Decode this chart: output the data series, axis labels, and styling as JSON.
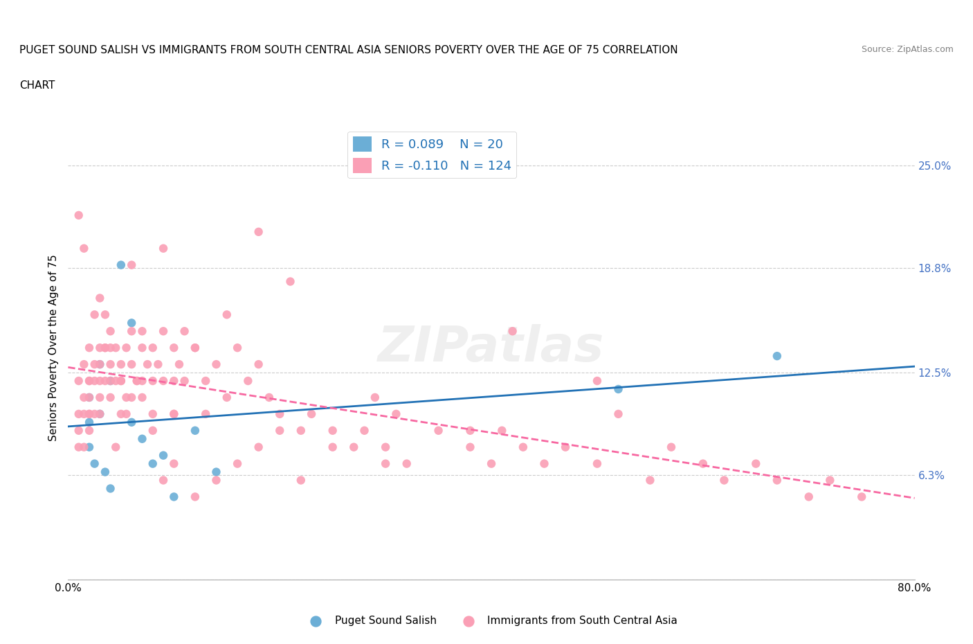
{
  "title_line1": "PUGET SOUND SALISH VS IMMIGRANTS FROM SOUTH CENTRAL ASIA SENIORS POVERTY OVER THE AGE OF 75 CORRELATION",
  "title_line2": "CHART",
  "source_text": "Source: ZipAtlas.com",
  "xlabel": "",
  "ylabel": "Seniors Poverty Over the Age of 75",
  "xlim": [
    0.0,
    0.8
  ],
  "ylim": [
    0.0,
    0.28
  ],
  "yticks": [
    0.0,
    0.063,
    0.125,
    0.188,
    0.25
  ],
  "ytick_labels": [
    "",
    "6.3%",
    "12.5%",
    "18.8%",
    "25.0%"
  ],
  "xticks": [
    0.0,
    0.1,
    0.2,
    0.3,
    0.4,
    0.5,
    0.6,
    0.7,
    0.8
  ],
  "xtick_labels": [
    "0.0%",
    "",
    "",
    "",
    "",
    "",
    "",
    "",
    "80.0%"
  ],
  "color_blue": "#6baed6",
  "color_pink": "#fa9fb5",
  "color_blue_line": "#2171b5",
  "color_pink_line": "#f768a1",
  "legend_r1": "R = 0.089",
  "legend_n1": "N = 20",
  "legend_r2": "R = -0.110",
  "legend_n2": "N = 124",
  "watermark": "ZIPatlas",
  "series1_name": "Puget Sound Salish",
  "series2_name": "Immigrants from South Central Asia",
  "blue_x": [
    0.02,
    0.02,
    0.02,
    0.025,
    0.03,
    0.03,
    0.035,
    0.04,
    0.04,
    0.05,
    0.06,
    0.06,
    0.07,
    0.08,
    0.09,
    0.1,
    0.12,
    0.14,
    0.52,
    0.67
  ],
  "blue_y": [
    0.08,
    0.095,
    0.11,
    0.07,
    0.1,
    0.13,
    0.065,
    0.055,
    0.12,
    0.19,
    0.155,
    0.095,
    0.085,
    0.07,
    0.075,
    0.05,
    0.09,
    0.065,
    0.115,
    0.135
  ],
  "pink_x": [
    0.01,
    0.01,
    0.01,
    0.015,
    0.015,
    0.015,
    0.015,
    0.02,
    0.02,
    0.02,
    0.02,
    0.02,
    0.025,
    0.025,
    0.025,
    0.03,
    0.03,
    0.03,
    0.03,
    0.03,
    0.035,
    0.035,
    0.035,
    0.04,
    0.04,
    0.04,
    0.04,
    0.045,
    0.045,
    0.05,
    0.05,
    0.05,
    0.055,
    0.055,
    0.06,
    0.06,
    0.06,
    0.065,
    0.07,
    0.07,
    0.075,
    0.08,
    0.08,
    0.085,
    0.09,
    0.09,
    0.1,
    0.1,
    0.1,
    0.105,
    0.11,
    0.11,
    0.12,
    0.13,
    0.13,
    0.14,
    0.15,
    0.16,
    0.17,
    0.18,
    0.19,
    0.2,
    0.22,
    0.23,
    0.25,
    0.27,
    0.28,
    0.3,
    0.31,
    0.32,
    0.35,
    0.38,
    0.4,
    0.41,
    0.43,
    0.45,
    0.47,
    0.5,
    0.52,
    0.55,
    0.57,
    0.6,
    0.62,
    0.65,
    0.67,
    0.7,
    0.72,
    0.75,
    0.5,
    0.42,
    0.38,
    0.29,
    0.21,
    0.18,
    0.15,
    0.12,
    0.1,
    0.09,
    0.08,
    0.07,
    0.065,
    0.055,
    0.045,
    0.035,
    0.025,
    0.02,
    0.015,
    0.01,
    0.01,
    0.02,
    0.03,
    0.04,
    0.05,
    0.06,
    0.07,
    0.08,
    0.09,
    0.1,
    0.12,
    0.14,
    0.16,
    0.18,
    0.2,
    0.22,
    0.25,
    0.3
  ],
  "pink_y": [
    0.12,
    0.1,
    0.09,
    0.13,
    0.11,
    0.1,
    0.08,
    0.14,
    0.12,
    0.11,
    0.1,
    0.09,
    0.13,
    0.12,
    0.1,
    0.14,
    0.13,
    0.12,
    0.11,
    0.1,
    0.16,
    0.14,
    0.12,
    0.15,
    0.13,
    0.12,
    0.11,
    0.14,
    0.12,
    0.13,
    0.12,
    0.1,
    0.14,
    0.11,
    0.15,
    0.13,
    0.11,
    0.12,
    0.14,
    0.12,
    0.13,
    0.14,
    0.12,
    0.13,
    0.2,
    0.15,
    0.14,
    0.12,
    0.1,
    0.13,
    0.15,
    0.12,
    0.14,
    0.12,
    0.1,
    0.13,
    0.11,
    0.14,
    0.12,
    0.13,
    0.11,
    0.1,
    0.09,
    0.1,
    0.09,
    0.08,
    0.09,
    0.08,
    0.1,
    0.07,
    0.09,
    0.08,
    0.07,
    0.09,
    0.08,
    0.07,
    0.08,
    0.07,
    0.1,
    0.06,
    0.08,
    0.07,
    0.06,
    0.07,
    0.06,
    0.05,
    0.06,
    0.05,
    0.12,
    0.15,
    0.09,
    0.11,
    0.18,
    0.21,
    0.16,
    0.14,
    0.1,
    0.12,
    0.09,
    0.11,
    0.12,
    0.1,
    0.08,
    0.14,
    0.16,
    0.12,
    0.2,
    0.22,
    0.08,
    0.1,
    0.17,
    0.14,
    0.12,
    0.19,
    0.15,
    0.1,
    0.06,
    0.07,
    0.05,
    0.06,
    0.07,
    0.08,
    0.09,
    0.06,
    0.08,
    0.07
  ]
}
